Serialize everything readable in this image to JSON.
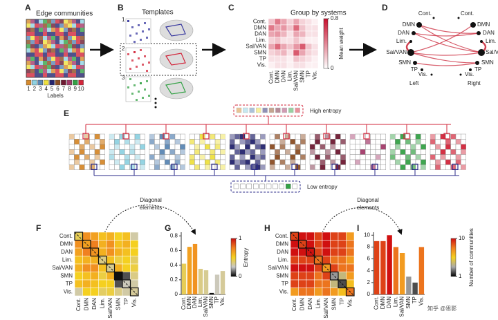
{
  "figure": {
    "A": {
      "letter": "A",
      "title": "Edge communities",
      "legend": [
        "1",
        "2",
        "3",
        "4",
        "5",
        "6",
        "7",
        "8",
        "9",
        "10"
      ],
      "legend_title": "Labels",
      "colors": [
        "#d58a2e",
        "#8fd2e2",
        "#5a86b4",
        "#efe13e",
        "#24246e",
        "#8b4c22",
        "#6e1a32",
        "#a33a6a",
        "#34a246",
        "#d2253a"
      ]
    },
    "B": {
      "letter": "B",
      "title": "Templates",
      "items": [
        "1",
        "2",
        "3"
      ]
    },
    "D": {
      "letter": "D",
      "top": [
        "Cont.",
        "Cont."
      ],
      "left_nodes": [
        "DMN",
        "DAN",
        "Lim.",
        "Sal/VAN",
        "SMN",
        "TP",
        "Vis."
      ],
      "right_nodes": [
        "DMN",
        "DAN",
        "Lim.",
        "Sal/VAN",
        "SMN",
        "TP",
        "Vis."
      ],
      "left": "Left",
      "right": "Right"
    },
    "E": {
      "letter": "E",
      "high": "High entropy",
      "low": "Low entropy"
    },
    "annotations": [
      [
        "Diagonal",
        "elements"
      ],
      [
        "Diagonal",
        "elements"
      ]
    ],
    "watermark": "知乎 @思影"
  },
  "chart_data": [
    {
      "type": "heatmap",
      "letter": "C",
      "title": "Group by systems",
      "categories": [
        "Cont.",
        "DMN",
        "DAN",
        "Lim.",
        "Sal/VAN",
        "SMN",
        "TP",
        "Vis."
      ],
      "values": [
        [
          0.2,
          0.45,
          0.3,
          0.15,
          0.3,
          0.15,
          0.1,
          0.05
        ],
        [
          0.45,
          0.3,
          0.35,
          0.2,
          0.5,
          0.2,
          0.1,
          0.1
        ],
        [
          0.3,
          0.35,
          0.25,
          0.1,
          0.3,
          0.25,
          0.1,
          0.1
        ],
        [
          0.15,
          0.2,
          0.1,
          0.1,
          0.2,
          0.1,
          0.05,
          0.05
        ],
        [
          0.3,
          0.5,
          0.3,
          0.2,
          0.35,
          0.55,
          0.2,
          0.1
        ],
        [
          0.15,
          0.2,
          0.25,
          0.1,
          0.55,
          0.3,
          0.15,
          0.1
        ],
        [
          0.1,
          0.1,
          0.1,
          0.05,
          0.2,
          0.15,
          0.1,
          0.05
        ],
        [
          0.05,
          0.1,
          0.1,
          0.05,
          0.1,
          0.1,
          0.05,
          0.05
        ]
      ],
      "vlim": [
        0,
        0.8
      ],
      "cticks": [
        0,
        0.8
      ],
      "colorbar_label": "Mean weight",
      "colorscale": [
        "#ffffff",
        "#c8102e"
      ]
    },
    {
      "type": "heatmap",
      "letter": "F",
      "categories": [
        "Cont.",
        "DMN",
        "DAN",
        "Lim.",
        "Sal/VAN",
        "SMN",
        "TP",
        "Vis."
      ],
      "values": [
        [
          0.42,
          0.7,
          0.65,
          0.55,
          0.6,
          0.5,
          0.55,
          0.3
        ],
        [
          0.7,
          0.65,
          0.75,
          0.6,
          0.7,
          0.55,
          0.6,
          0.5
        ],
        [
          0.65,
          0.75,
          0.69,
          0.6,
          0.7,
          0.6,
          0.55,
          0.5
        ],
        [
          0.55,
          0.6,
          0.6,
          0.35,
          0.55,
          0.45,
          0.5,
          0.4
        ],
        [
          0.6,
          0.7,
          0.7,
          0.55,
          0.33,
          0.6,
          0.5,
          0.45
        ],
        [
          0.5,
          0.55,
          0.6,
          0.45,
          0.6,
          0.02,
          0.1,
          0.35
        ],
        [
          0.55,
          0.6,
          0.55,
          0.5,
          0.5,
          0.1,
          0.27,
          0.3
        ],
        [
          0.3,
          0.5,
          0.5,
          0.4,
          0.45,
          0.35,
          0.3,
          0.32
        ]
      ],
      "vlim": [
        0,
        1
      ],
      "colorscale": [
        "#000000",
        "#c8c8c8",
        "#f5d020",
        "#f08020",
        "#c81010"
      ]
    },
    {
      "type": "bar",
      "letter": "G",
      "categories": [
        "Cont.",
        "DMN",
        "DAN",
        "Lim.",
        "Sal/VAN",
        "SMN",
        "TP",
        "Vis."
      ],
      "values": [
        0.42,
        0.65,
        0.69,
        0.35,
        0.33,
        0.02,
        0.27,
        0.32
      ],
      "ylim": [
        0,
        0.85
      ],
      "yticks": [
        0,
        0.2,
        0.4,
        0.6,
        0.8
      ],
      "clim": [
        0,
        1
      ],
      "cticks": [
        0,
        1
      ],
      "colorbar_label": "Entropy",
      "colorscale": [
        "#000000",
        "#c8c8c8",
        "#f5d020",
        "#f08020",
        "#c81010"
      ]
    },
    {
      "type": "heatmap",
      "letter": "H",
      "categories": [
        "Cont.",
        "DMN",
        "DAN",
        "Lim.",
        "Sal/VAN",
        "SMN",
        "TP",
        "Vis."
      ],
      "values": [
        [
          9,
          10,
          10,
          9,
          10,
          9,
          9,
          7
        ],
        [
          10,
          9,
          10,
          9,
          10,
          9,
          9,
          8
        ],
        [
          10,
          10,
          10,
          9,
          10,
          9,
          9,
          8
        ],
        [
          9,
          9,
          9,
          8,
          9,
          8,
          8,
          7
        ],
        [
          10,
          10,
          10,
          9,
          7,
          9,
          8,
          8
        ],
        [
          9,
          9,
          9,
          8,
          9,
          3,
          4,
          7
        ],
        [
          9,
          9,
          9,
          8,
          8,
          4,
          2,
          6
        ],
        [
          7,
          8,
          8,
          7,
          8,
          7,
          6,
          8
        ]
      ],
      "vlim": [
        1,
        10
      ],
      "colorscale": [
        "#000000",
        "#aaaaaa",
        "#f5d020",
        "#f08020",
        "#d01010"
      ]
    },
    {
      "type": "bar",
      "letter": "I",
      "categories": [
        "Cont.",
        "DMN",
        "DAN",
        "Lim.",
        "Sal/VAN",
        "SMN",
        "TP",
        "Vis."
      ],
      "values": [
        9,
        9,
        10,
        8,
        7,
        3,
        2,
        8
      ],
      "ylim": [
        0,
        10.5
      ],
      "yticks": [
        0,
        2,
        4,
        6,
        8,
        10
      ],
      "clim": [
        1,
        10
      ],
      "cticks": [
        1,
        10
      ],
      "colorbar_label": "Number of communities",
      "colorscale": [
        "#000000",
        "#aaaaaa",
        "#f5d020",
        "#f08020",
        "#d01010"
      ]
    }
  ]
}
